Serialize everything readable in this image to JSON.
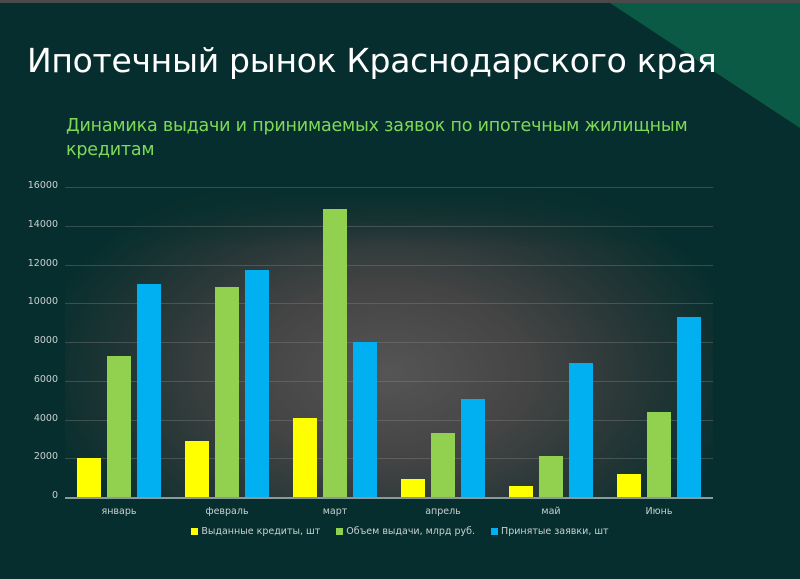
{
  "slide": {
    "title": "Ипотечный рынок Краснодарского края",
    "subtitle": "Динамика выдачи и принимаемых заявок по ипотечным жилищным кредитам"
  },
  "colors": {
    "background": "#072e2e",
    "accent_corner": "#0a5a45",
    "title": "#ffffff",
    "subtitle": "#7ed957"
  },
  "chart_data": {
    "type": "bar",
    "title": "Динамика выдачи и принимаемых заявок по ипотечным жилищным кредитам",
    "xlabel": "",
    "ylabel": "",
    "ylim": [
      0,
      16000
    ],
    "yticks": [
      "0",
      "2000",
      "4000",
      "6000",
      "8000",
      "10000",
      "12000",
      "14000",
      "16000"
    ],
    "grid": true,
    "legend_position": "bottom",
    "categories": [
      "январь",
      "февраль",
      "март",
      "апрель",
      "май",
      "Июнь"
    ],
    "series": [
      {
        "name": "Выданные кредиты, шт",
        "color": "#ffff00",
        "values": [
          2000,
          2900,
          4100,
          950,
          580,
          1200
        ]
      },
      {
        "name": "Объем выдачи, млрд руб.",
        "color": "#92d050",
        "values": [
          7300,
          10850,
          14850,
          3280,
          2120,
          4380
        ]
      },
      {
        "name": "Принятые заявки, шт",
        "color": "#00b0f0",
        "values": [
          11000,
          11720,
          8000,
          5080,
          6930,
          9290
        ]
      }
    ]
  }
}
